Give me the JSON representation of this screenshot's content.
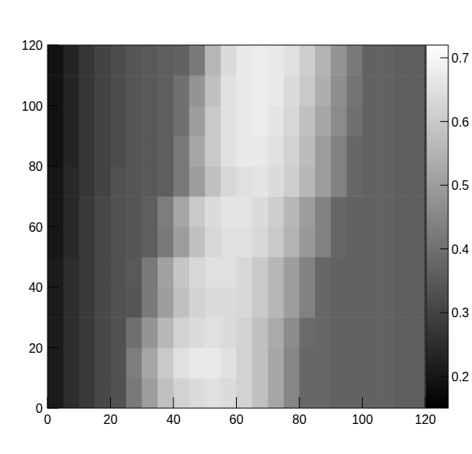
{
  "chart_data": {
    "type": "heatmap",
    "xbins": [
      0,
      5,
      10,
      15,
      20,
      25,
      30,
      35,
      40,
      45,
      50,
      55,
      60,
      65,
      70,
      75,
      80,
      85,
      90,
      95,
      100,
      105,
      110,
      115,
      120
    ],
    "ybins": [
      0,
      10,
      20,
      30,
      40,
      50,
      60,
      70,
      80,
      90,
      100,
      110,
      120
    ],
    "values": [
      [
        0.21,
        0.25,
        0.28,
        0.31,
        0.33,
        0.42,
        0.5,
        0.58,
        0.62,
        0.64,
        0.65,
        0.64,
        0.62,
        0.58,
        0.52,
        0.45,
        0.38,
        0.38,
        0.37,
        0.37,
        0.37,
        0.37,
        0.36,
        0.36
      ],
      [
        0.21,
        0.25,
        0.28,
        0.31,
        0.33,
        0.43,
        0.52,
        0.6,
        0.65,
        0.67,
        0.67,
        0.65,
        0.62,
        0.58,
        0.52,
        0.45,
        0.38,
        0.38,
        0.37,
        0.37,
        0.37,
        0.37,
        0.36,
        0.36
      ],
      [
        0.21,
        0.25,
        0.28,
        0.31,
        0.33,
        0.4,
        0.48,
        0.56,
        0.62,
        0.64,
        0.65,
        0.64,
        0.62,
        0.58,
        0.53,
        0.46,
        0.39,
        0.38,
        0.37,
        0.37,
        0.37,
        0.37,
        0.36,
        0.36
      ],
      [
        0.21,
        0.25,
        0.28,
        0.31,
        0.33,
        0.34,
        0.42,
        0.5,
        0.58,
        0.62,
        0.64,
        0.64,
        0.63,
        0.6,
        0.56,
        0.5,
        0.44,
        0.38,
        0.37,
        0.37,
        0.37,
        0.37,
        0.36,
        0.36
      ],
      [
        0.21,
        0.25,
        0.28,
        0.31,
        0.33,
        0.35,
        0.42,
        0.51,
        0.59,
        0.63,
        0.65,
        0.65,
        0.63,
        0.6,
        0.56,
        0.5,
        0.44,
        0.38,
        0.37,
        0.37,
        0.37,
        0.37,
        0.36,
        0.36
      ],
      [
        0.2,
        0.24,
        0.28,
        0.31,
        0.33,
        0.34,
        0.36,
        0.42,
        0.5,
        0.58,
        0.63,
        0.65,
        0.65,
        0.63,
        0.6,
        0.55,
        0.49,
        0.44,
        0.38,
        0.37,
        0.37,
        0.37,
        0.36,
        0.36
      ],
      [
        0.2,
        0.24,
        0.28,
        0.31,
        0.33,
        0.34,
        0.36,
        0.43,
        0.52,
        0.6,
        0.64,
        0.66,
        0.66,
        0.64,
        0.61,
        0.56,
        0.5,
        0.44,
        0.38,
        0.37,
        0.37,
        0.37,
        0.36,
        0.36
      ],
      [
        0.2,
        0.24,
        0.27,
        0.3,
        0.33,
        0.34,
        0.35,
        0.36,
        0.42,
        0.5,
        0.58,
        0.63,
        0.65,
        0.66,
        0.64,
        0.61,
        0.56,
        0.5,
        0.44,
        0.38,
        0.37,
        0.37,
        0.36,
        0.36
      ],
      [
        0.19,
        0.23,
        0.27,
        0.3,
        0.32,
        0.34,
        0.35,
        0.36,
        0.42,
        0.52,
        0.6,
        0.65,
        0.67,
        0.67,
        0.65,
        0.62,
        0.57,
        0.5,
        0.44,
        0.38,
        0.37,
        0.37,
        0.36,
        0.36
      ],
      [
        0.19,
        0.23,
        0.27,
        0.3,
        0.32,
        0.34,
        0.35,
        0.36,
        0.4,
        0.5,
        0.6,
        0.65,
        0.67,
        0.68,
        0.66,
        0.63,
        0.58,
        0.52,
        0.46,
        0.4,
        0.37,
        0.37,
        0.36,
        0.36
      ],
      [
        0.19,
        0.23,
        0.27,
        0.3,
        0.32,
        0.34,
        0.35,
        0.36,
        0.4,
        0.48,
        0.58,
        0.65,
        0.67,
        0.68,
        0.67,
        0.64,
        0.6,
        0.54,
        0.47,
        0.41,
        0.37,
        0.37,
        0.36,
        0.36
      ],
      [
        0.19,
        0.23,
        0.27,
        0.3,
        0.32,
        0.34,
        0.35,
        0.36,
        0.37,
        0.42,
        0.56,
        0.64,
        0.67,
        0.68,
        0.67,
        0.65,
        0.61,
        0.55,
        0.48,
        0.42,
        0.37,
        0.37,
        0.36,
        0.36
      ]
    ],
    "xlim": [
      0,
      120
    ],
    "ylim": [
      0,
      120
    ],
    "xticks": [
      0,
      20,
      40,
      60,
      80,
      100,
      120
    ],
    "yticks": [
      0,
      20,
      40,
      60,
      80,
      100,
      120
    ],
    "zlim": [
      0.15,
      0.72
    ],
    "zticks": [
      0.2,
      0.3,
      0.4,
      0.5,
      0.6,
      0.7
    ]
  }
}
